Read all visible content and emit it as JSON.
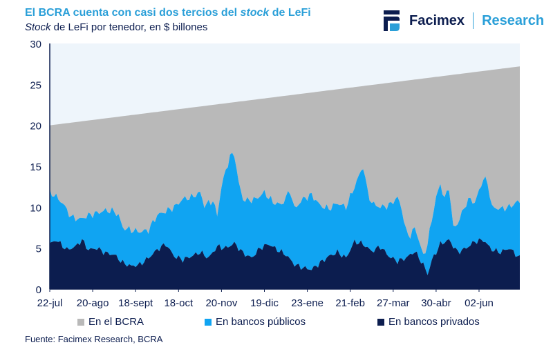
{
  "header": {
    "title_pre": "El BCRA cuenta con casi dos tercios del ",
    "title_em": "stock",
    "title_post": " de LeFi",
    "subtitle_em": "Stock",
    "subtitle_post": " de LeFi por tenedor, en $ billones"
  },
  "logo": {
    "brand": "Facimex",
    "research": "Research"
  },
  "source": "Fuente: Facimex Research, BCRA",
  "colors": {
    "bcra": "#b9b9b9",
    "publicos": "#10a4f2",
    "privados": "#0c1d4f",
    "plot_bg": "#eef5fb",
    "accent": "#2a9fd8"
  },
  "chart_data": {
    "type": "area",
    "stacked": true,
    "ylim": [
      0,
      30
    ],
    "yticks": [
      0,
      5,
      10,
      15,
      20,
      25,
      30
    ],
    "x_tick_labels": [
      "22-jul",
      "20-ago",
      "18-sept",
      "18-oct",
      "20-nov",
      "19-dic",
      "23-ene",
      "21-feb",
      "27-mar",
      "30-abr",
      "02-jun"
    ],
    "x_tick_index": [
      0,
      20,
      40,
      60,
      80,
      100,
      120,
      140,
      160,
      180,
      200
    ],
    "n_points": 220,
    "total_start": 20.0,
    "total_end": 27.2,
    "legend_position": "bottom",
    "series": [
      {
        "name": "En el BCRA",
        "color": "#b9b9b9"
      },
      {
        "name": "En bancos públicos",
        "color": "#10a4f2"
      },
      {
        "name": "En bancos privados",
        "color": "#0c1d4f"
      }
    ],
    "privados_keypoints": [
      [
        0,
        5.5
      ],
      [
        3,
        6
      ],
      [
        8,
        4.8
      ],
      [
        12,
        5.2
      ],
      [
        15,
        6
      ],
      [
        18,
        4.8
      ],
      [
        22,
        5.0
      ],
      [
        26,
        4.4
      ],
      [
        30,
        4.2
      ],
      [
        34,
        3.2
      ],
      [
        38,
        2.8
      ],
      [
        42,
        3.0
      ],
      [
        46,
        3.8
      ],
      [
        50,
        4.8
      ],
      [
        54,
        5.5
      ],
      [
        58,
        4.0
      ],
      [
        62,
        3.6
      ],
      [
        66,
        4.0
      ],
      [
        70,
        4.5
      ],
      [
        74,
        3.8
      ],
      [
        78,
        5.2
      ],
      [
        82,
        5.0
      ],
      [
        86,
        5.6
      ],
      [
        90,
        4.4
      ],
      [
        94,
        3.8
      ],
      [
        98,
        5.0
      ],
      [
        102,
        5.5
      ],
      [
        106,
        4.8
      ],
      [
        110,
        4.2
      ],
      [
        114,
        3.0
      ],
      [
        118,
        2.6
      ],
      [
        122,
        2.4
      ],
      [
        126,
        3.2
      ],
      [
        130,
        4.0
      ],
      [
        134,
        4.5
      ],
      [
        138,
        3.8
      ],
      [
        142,
        5.8
      ],
      [
        146,
        5.5
      ],
      [
        150,
        4.6
      ],
      [
        154,
        5.2
      ],
      [
        158,
        4.0
      ],
      [
        162,
        3.4
      ],
      [
        166,
        3.8
      ],
      [
        170,
        4.6
      ],
      [
        174,
        3.0
      ],
      [
        176,
        1.8
      ],
      [
        178,
        3.5
      ],
      [
        182,
        5.5
      ],
      [
        186,
        6.0
      ],
      [
        190,
        4.5
      ],
      [
        194,
        5.0
      ],
      [
        198,
        5.8
      ],
      [
        202,
        6.0
      ],
      [
        206,
        4.8
      ],
      [
        210,
        4.5
      ],
      [
        214,
        5.0
      ],
      [
        219,
        3.8
      ]
    ],
    "total_mid_keypoints": [
      [
        0,
        11.8
      ],
      [
        2,
        11.5
      ],
      [
        6,
        10.5
      ],
      [
        10,
        8.8
      ],
      [
        14,
        8.5
      ],
      [
        18,
        9.0
      ],
      [
        22,
        9.3
      ],
      [
        26,
        9.6
      ],
      [
        30,
        9.5
      ],
      [
        32,
        9.0
      ],
      [
        34,
        7.5
      ],
      [
        38,
        7.2
      ],
      [
        42,
        7.0
      ],
      [
        46,
        7.2
      ],
      [
        50,
        9.0
      ],
      [
        54,
        9.5
      ],
      [
        58,
        10.0
      ],
      [
        62,
        11.0
      ],
      [
        66,
        11.2
      ],
      [
        70,
        11.8
      ],
      [
        72,
        10.2
      ],
      [
        76,
        10.8
      ],
      [
        78,
        9.0
      ],
      [
        80,
        12.5
      ],
      [
        82,
        14.5
      ],
      [
        84,
        16.2
      ],
      [
        86,
        16.5
      ],
      [
        88,
        13.0
      ],
      [
        90,
        11.0
      ],
      [
        92,
        10.8
      ],
      [
        96,
        11.0
      ],
      [
        100,
        11.8
      ],
      [
        104,
        10.6
      ],
      [
        108,
        10.3
      ],
      [
        110,
        11.2
      ],
      [
        112,
        12.0
      ],
      [
        114,
        9.8
      ],
      [
        118,
        11.0
      ],
      [
        122,
        11.5
      ],
      [
        126,
        10.2
      ],
      [
        130,
        9.8
      ],
      [
        134,
        10.5
      ],
      [
        138,
        10.0
      ],
      [
        142,
        12.5
      ],
      [
        144,
        13.8
      ],
      [
        146,
        15.0
      ],
      [
        148,
        12.0
      ],
      [
        150,
        10.5
      ],
      [
        154,
        10.0
      ],
      [
        158,
        10.2
      ],
      [
        162,
        11.2
      ],
      [
        164,
        9.8
      ],
      [
        166,
        7.0
      ],
      [
        168,
        6.5
      ],
      [
        170,
        7.5
      ],
      [
        172,
        6.0
      ],
      [
        174,
        4.0
      ],
      [
        176,
        5.5
      ],
      [
        178,
        8.5
      ],
      [
        180,
        11.2
      ],
      [
        182,
        12.8
      ],
      [
        184,
        11.0
      ],
      [
        186,
        12.5
      ],
      [
        188,
        7.5
      ],
      [
        190,
        8.0
      ],
      [
        194,
        10.5
      ],
      [
        196,
        11.0
      ],
      [
        198,
        10.5
      ],
      [
        202,
        13.5
      ],
      [
        204,
        13.0
      ],
      [
        206,
        10.0
      ],
      [
        210,
        9.8
      ],
      [
        214,
        10.0
      ],
      [
        218,
        10.7
      ],
      [
        219,
        10.5
      ]
    ],
    "privados_amplitude": 0.4,
    "total_mid_amplitude": 0.5
  },
  "legend": {
    "bcra": "En el BCRA",
    "publicos": "En bancos públicos",
    "privados": "En bancos privados"
  }
}
